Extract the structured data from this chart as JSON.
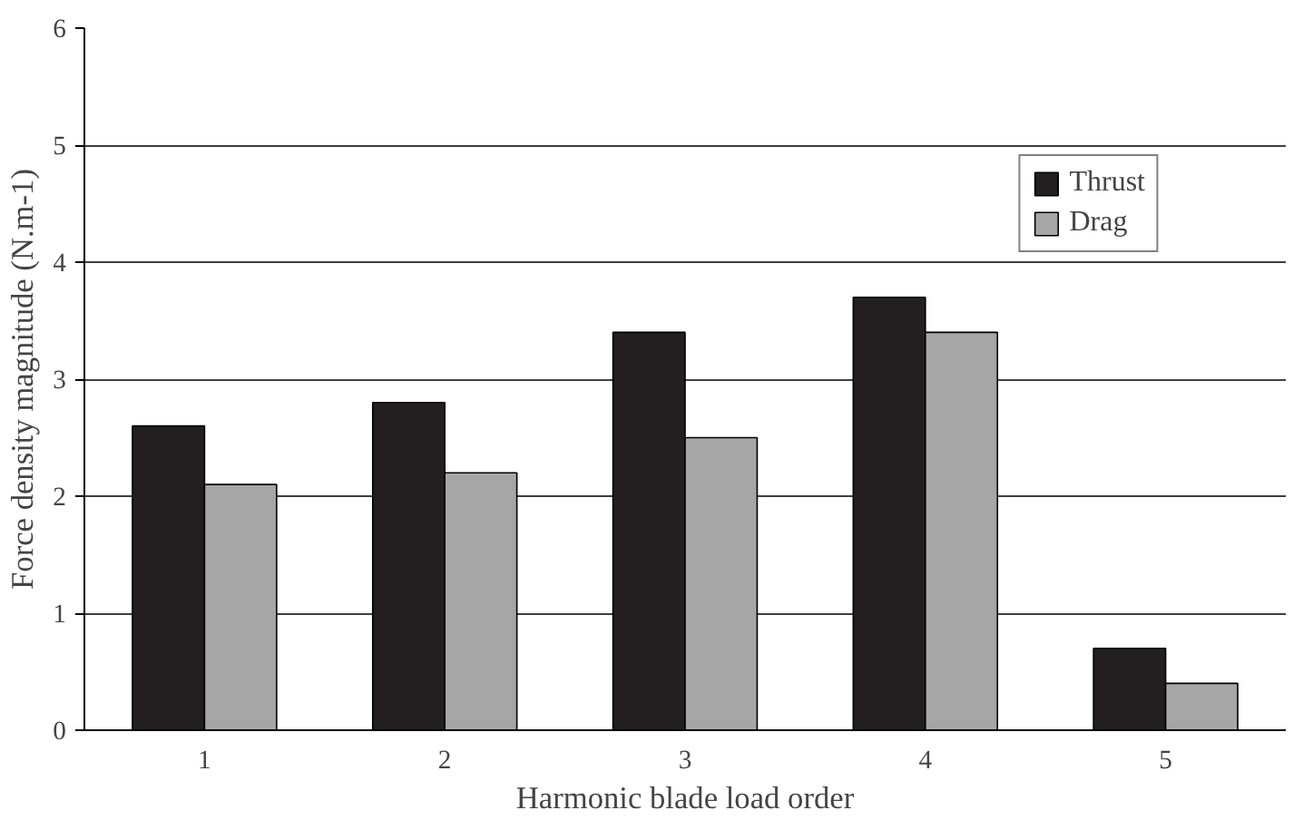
{
  "chart_data": {
    "type": "bar",
    "xlabel": "Harmonic blade load order",
    "ylabel": "Force density magnitude (N.m-1)",
    "categories": [
      "1",
      "2",
      "3",
      "4",
      "5"
    ],
    "series": [
      {
        "name": "Thrust",
        "color": "#231f20",
        "values": [
          2.6,
          2.8,
          3.4,
          3.7,
          0.7
        ]
      },
      {
        "name": "Drag",
        "color": "#a6a6a6",
        "values": [
          2.1,
          2.2,
          2.5,
          3.4,
          0.4
        ]
      }
    ],
    "ylim": [
      0,
      6
    ],
    "yticks": [
      0,
      1,
      2,
      3,
      4,
      5,
      6
    ],
    "grid": "y",
    "legend": "top right"
  }
}
